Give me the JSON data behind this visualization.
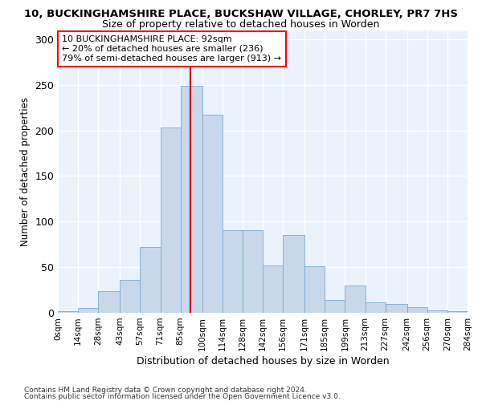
{
  "title_line1": "10, BUCKINGHAMSHIRE PLACE, BUCKSHAW VILLAGE, CHORLEY, PR7 7HS",
  "title_line2": "Size of property relative to detached houses in Worden",
  "xlabel": "Distribution of detached houses by size in Worden",
  "ylabel": "Number of detached properties",
  "bar_color": "#c8d8ea",
  "bar_edge_color": "#7aaad0",
  "bg_color": "#eaf2fb",
  "grid_color": "#ffffff",
  "vline_x": 92,
  "vline_color": "#cc0000",
  "annotation_text": "10 BUCKINGHAMSHIRE PLACE: 92sqm\n← 20% of detached houses are smaller (236)\n79% of semi-detached houses are larger (913) →",
  "footnote1": "Contains HM Land Registry data © Crown copyright and database right 2024.",
  "footnote2": "Contains public sector information licensed under the Open Government Licence v3.0.",
  "bin_edges": [
    0,
    14,
    28,
    43,
    57,
    71,
    85,
    100,
    114,
    128,
    142,
    156,
    171,
    185,
    199,
    213,
    227,
    242,
    256,
    270,
    284
  ],
  "bar_heights": [
    2,
    5,
    24,
    36,
    72,
    203,
    249,
    217,
    91,
    91,
    52,
    85,
    51,
    14,
    30,
    11,
    10,
    6,
    3,
    2
  ],
  "ylim": [
    0,
    310
  ],
  "yticks": [
    0,
    50,
    100,
    150,
    200,
    250,
    300
  ]
}
